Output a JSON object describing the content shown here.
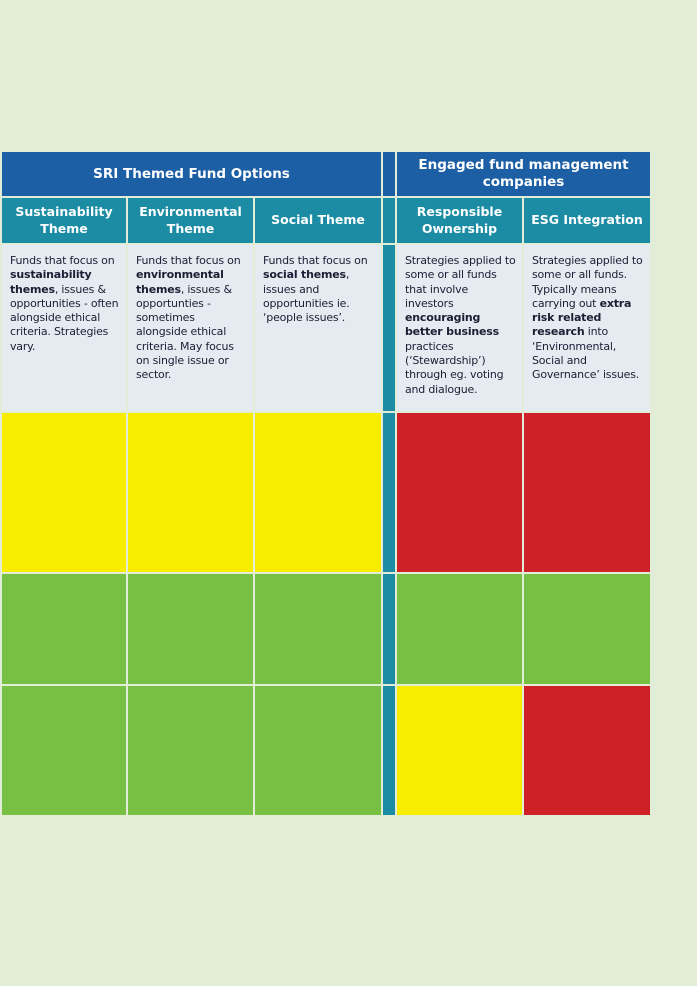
{
  "colors": {
    "page_bg": "#e2edd8",
    "header_blue": "#1c5fa5",
    "header_teal": "#1b8ca4",
    "desc_bg": "#e4ecf2",
    "desc_text": "#1d1d33",
    "white": "#ffffff",
    "yellow": "#f8ec00",
    "green": "#77c044",
    "red": "#cd2127"
  },
  "table": {
    "group_headers": [
      {
        "label": "SRI Themed Fund Options"
      },
      {
        "label": "Engaged fund management companies"
      }
    ],
    "columns": [
      {
        "header": "Sustainability Theme",
        "description": [
          {
            "text": "Funds that focus on ",
            "bold": false
          },
          {
            "text": "sustainability themes",
            "bold": true
          },
          {
            "text": ", issues & opportunities - often alongside ethical criteria. Strategies vary.",
            "bold": false
          }
        ]
      },
      {
        "header": "Environmental Theme",
        "description": [
          {
            "text": "Funds that focus on ",
            "bold": false
          },
          {
            "text": "environmental themes",
            "bold": true
          },
          {
            "text": ", issues & opportunties - sometimes alongside ethical criteria. May focus on single issue or sector.",
            "bold": false
          }
        ]
      },
      {
        "header": "Social Theme",
        "description": [
          {
            "text": "Funds that focus on ",
            "bold": false
          },
          {
            "text": "social themes",
            "bold": true
          },
          {
            "text": ", issues and opportunities ie. ‘people issues’.",
            "bold": false
          }
        ]
      },
      {
        "header": "Responsible Ownership",
        "description": [
          {
            "text": "Strategies applied to some or all funds that involve investors ",
            "bold": false
          },
          {
            "text": "encouraging better business",
            "bold": true
          },
          {
            "text": " practices (‘Stewardship’) through eg. voting and dialogue.",
            "bold": false
          }
        ]
      },
      {
        "header": "ESG Integration",
        "description": [
          {
            "text": "Strategies applied to some or all funds. Typically means carrying out ",
            "bold": false
          },
          {
            "text": "extra risk related research",
            "bold": true
          },
          {
            "text": " into ‘Environmental, Social and Governance’ issues.",
            "bold": false
          }
        ]
      }
    ],
    "rating_rows": [
      {
        "cells": [
          "yellow",
          "yellow",
          "yellow",
          "red",
          "red"
        ]
      },
      {
        "cells": [
          "green",
          "green",
          "green",
          "green",
          "green"
        ]
      },
      {
        "cells": [
          "green",
          "green",
          "green",
          "yellow",
          "red"
        ]
      }
    ]
  }
}
